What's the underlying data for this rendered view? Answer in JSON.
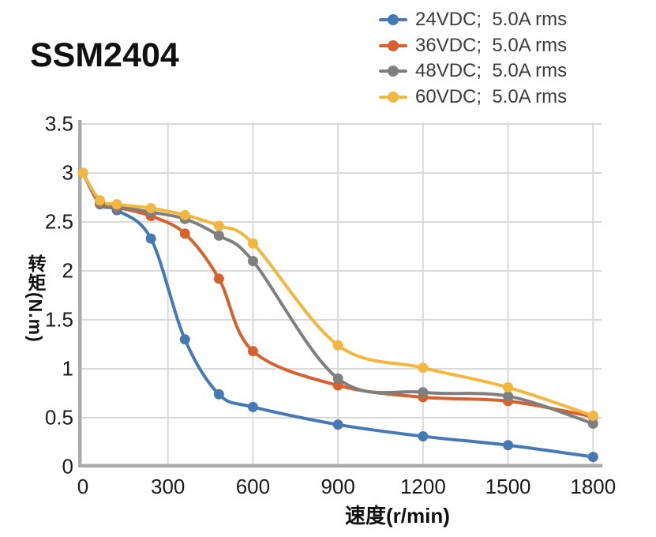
{
  "title": "SSM2404",
  "legend": {
    "items": [
      {
        "label": "24VDC;  5.0A rms"
      },
      {
        "label": "36VDC;  5.0A rms"
      },
      {
        "label": "48VDC;  5.0A rms"
      },
      {
        "label": "60VDC;  5.0A rms"
      }
    ]
  },
  "chart_data": {
    "type": "line",
    "title": "SSM2404",
    "xlabel": "速度(r/min)",
    "ylabel": "转矩(N.m)",
    "xlim": [
      0,
      1800
    ],
    "ylim": [
      0,
      3.5
    ],
    "x_ticks": [
      0,
      300,
      600,
      900,
      1200,
      1500,
      1800
    ],
    "y_ticks": [
      0,
      0.5,
      1,
      1.5,
      2,
      2.5,
      3,
      3.5
    ],
    "grid": true,
    "legend_position": "top-right",
    "x": [
      0,
      60,
      120,
      240,
      360,
      480,
      600,
      900,
      1200,
      1500,
      1800
    ],
    "series": [
      {
        "name": "24VDC;  5.0A rms",
        "color": "#4579B4",
        "values": [
          3.0,
          2.68,
          2.62,
          2.33,
          1.3,
          0.74,
          0.61,
          0.43,
          0.31,
          0.22,
          0.1
        ]
      },
      {
        "name": "36VDC;  5.0A rms",
        "color": "#D6612C",
        "values": [
          3.0,
          2.69,
          2.65,
          2.56,
          2.38,
          1.92,
          1.18,
          0.83,
          0.71,
          0.67,
          0.51
        ]
      },
      {
        "name": "48VDC;  5.0A rms",
        "color": "#7F7F7F",
        "values": [
          3.0,
          2.7,
          2.66,
          2.6,
          2.53,
          2.36,
          2.1,
          0.9,
          0.76,
          0.72,
          0.44
        ]
      },
      {
        "name": "60VDC;  5.0A rms",
        "color": "#F2B73E",
        "values": [
          3.0,
          2.72,
          2.68,
          2.64,
          2.57,
          2.46,
          2.28,
          1.24,
          1.01,
          0.81,
          0.52
        ]
      }
    ]
  },
  "style": {
    "axis_color": "#A9A9A9",
    "grid_color": "#D9D9D9",
    "tick_color": "#1a1a1a",
    "legend_text_color": "#3c3c3c"
  }
}
